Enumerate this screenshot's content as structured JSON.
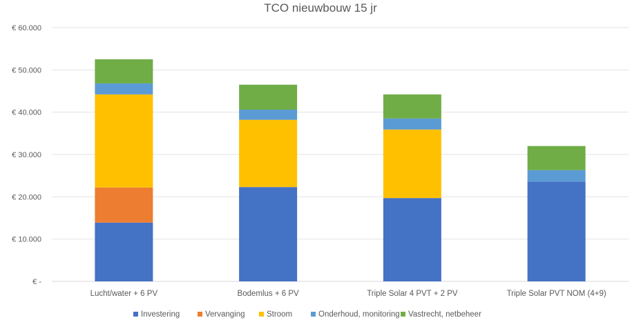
{
  "chart_data": {
    "type": "bar",
    "stacked": true,
    "title": "TCO nieuwbouw 15 jr",
    "xlabel": "",
    "ylabel": "",
    "ylim": [
      0,
      60000
    ],
    "yticks": [
      0,
      10000,
      20000,
      30000,
      40000,
      50000,
      60000
    ],
    "ytick_labels": [
      "€ -",
      "€ 10.000",
      "€ 20.000",
      "€ 30.000",
      "€ 40.000",
      "€ 50.000",
      "€ 60.000"
    ],
    "grid": true,
    "legend": "bottom",
    "categories": [
      "Lucht/water + 6 PV",
      "Bodemlus + 6 PV",
      "Triple Solar 4 PVT + 2 PV",
      "Triple Solar PVT NOM (4+9)"
    ],
    "series": [
      {
        "name": "Investering",
        "color": "#4472C4",
        "values": [
          13900,
          22300,
          19700,
          23600
        ]
      },
      {
        "name": "Vervanging",
        "color": "#ED7D31",
        "values": [
          8300,
          0,
          0,
          0
        ]
      },
      {
        "name": "Stroom",
        "color": "#FFC000",
        "values": [
          22000,
          15900,
          16200,
          0
        ]
      },
      {
        "name": "Onderhoud, monitoring",
        "color": "#5B9BD5",
        "values": [
          2600,
          2400,
          2600,
          2700
        ]
      },
      {
        "name": "Vastrecht, netbeheer",
        "color": "#70AD47",
        "values": [
          5700,
          5900,
          5700,
          5700
        ]
      }
    ]
  }
}
